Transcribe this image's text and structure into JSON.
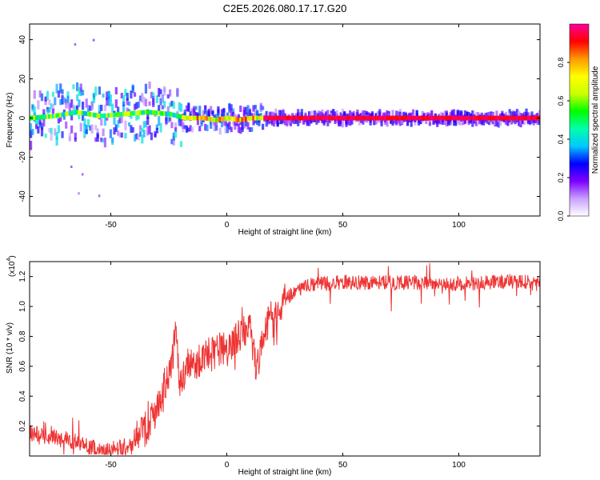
{
  "chart_data": [
    {
      "type": "heatmap",
      "title": "C2E5.2026.080.17.17.G20",
      "xlabel": "Height of straight line (km)",
      "ylabel": "Frequency (Hz)",
      "xlim": [
        -85,
        135
      ],
      "ylim": [
        -50,
        48
      ],
      "xticks": [
        -50,
        0,
        50,
        100
      ],
      "yticks": [
        -40,
        -20,
        0,
        20,
        40
      ],
      "colorbar": {
        "label": "Normalized spectral amplitude",
        "range": [
          0,
          1
        ],
        "ticks": [
          "0.0",
          "0.2",
          "0.4",
          "0.6",
          "0.8"
        ],
        "colors": [
          "#ffffff",
          "#c8a0ff",
          "#7d00ff",
          "#0000ff",
          "#00c8ff",
          "#00ffaa",
          "#00ff00",
          "#ccff00",
          "#ffff00",
          "#ff9900",
          "#ff0000",
          "#ff0099"
        ]
      },
      "ridge": {
        "x": [
          -85,
          -75,
          -65,
          -55,
          -45,
          -35,
          -25,
          -18,
          -10,
          -5,
          0,
          5,
          10,
          15,
          20,
          135
        ],
        "frequency": [
          0,
          1,
          3,
          1,
          2,
          3,
          2,
          0,
          0,
          -1,
          0,
          -1,
          0,
          0,
          0,
          0
        ]
      }
    },
    {
      "type": "line",
      "xlabel": "Height of straight line (km)",
      "ylabel": "SNR (10 * v/v)",
      "multiplier": "(x10",
      "multiplier_exp": "4",
      "xlim": [
        -85,
        135
      ],
      "ylim": [
        0.0,
        1.3
      ],
      "xticks": [
        -50,
        0,
        50,
        100
      ],
      "yticks": [
        0.2,
        0.4,
        0.6,
        0.8,
        1.0,
        1.2
      ],
      "series": [
        {
          "color": "#ee3333",
          "x": [
            -85,
            -80,
            -75,
            -70,
            -65,
            -60,
            -55,
            -50,
            -45,
            -40,
            -35,
            -30,
            -25,
            -22,
            -20,
            -15,
            -10,
            -5,
            0,
            5,
            10,
            13,
            15,
            20,
            25,
            30,
            35,
            40,
            50,
            60,
            70,
            80,
            90,
            100,
            110,
            120,
            130,
            135
          ],
          "values": [
            0.15,
            0.13,
            0.12,
            0.11,
            0.09,
            0.06,
            0.04,
            0.04,
            0.05,
            0.1,
            0.18,
            0.35,
            0.55,
            0.8,
            0.48,
            0.6,
            0.65,
            0.7,
            0.72,
            0.8,
            0.85,
            0.55,
            0.8,
            0.95,
            1.05,
            1.1,
            1.14,
            1.15,
            1.16,
            1.16,
            1.16,
            1.16,
            1.15,
            1.15,
            1.16,
            1.17,
            1.16,
            1.15
          ]
        }
      ]
    }
  ]
}
